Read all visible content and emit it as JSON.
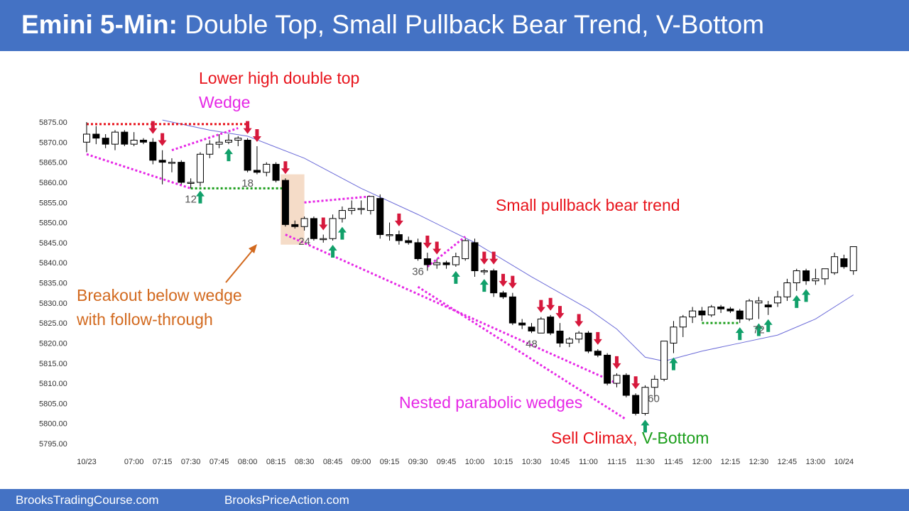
{
  "header": {
    "title_bold": "Emini 5-Min:",
    "title_rest": "Double Top, Small Pullback Bear Trend, V-Bottom",
    "background": "#4472c4"
  },
  "footer": {
    "left": "BrooksTradingCourse.com",
    "right": "BrooksPriceAction.com"
  },
  "annotations": {
    "lower_high": "Lower high double top",
    "wedge": "Wedge",
    "small_pullback": "Small pullback bear trend",
    "breakout_1": "Breakout below wedge",
    "breakout_2": "with follow-through",
    "nested": "Nested parabolic wedges",
    "sell_climax": "Sell Climax,",
    "v_bottom": "V-Bottom"
  },
  "colors": {
    "red": "#e8141c",
    "magenta": "#e627e6",
    "orange": "#d2691e",
    "green": "#1b9e1b",
    "arrow_up": "#11a06a",
    "arrow_down": "#d6183c",
    "ema": "#6b6bd8",
    "highlight": "#f5dcc8"
  },
  "chart_data": {
    "type": "candlestick",
    "title": "Emini 5-Min",
    "ylim": [
      5795,
      5875
    ],
    "y_ticks": [
      "5875.00",
      "5870.00",
      "5865.00",
      "5860.00",
      "5855.00",
      "5850.00",
      "5845.00",
      "5840.00",
      "5835.00",
      "5830.00",
      "5825.00",
      "5820.00",
      "5815.00",
      "5810.00",
      "5805.00",
      "5800.00",
      "5795.00"
    ],
    "x_ticks": [
      {
        "bar": 1,
        "label": "10/23"
      },
      {
        "bar": 6,
        "label": "07:00"
      },
      {
        "bar": 9,
        "label": "07:15"
      },
      {
        "bar": 12,
        "label": "07:30"
      },
      {
        "bar": 15,
        "label": "07:45"
      },
      {
        "bar": 18,
        "label": "08:00"
      },
      {
        "bar": 21,
        "label": "08:15"
      },
      {
        "bar": 24,
        "label": "08:30"
      },
      {
        "bar": 27,
        "label": "08:45"
      },
      {
        "bar": 30,
        "label": "09:00"
      },
      {
        "bar": 33,
        "label": "09:15"
      },
      {
        "bar": 36,
        "label": "09:30"
      },
      {
        "bar": 39,
        "label": "09:45"
      },
      {
        "bar": 42,
        "label": "10:00"
      },
      {
        "bar": 45,
        "label": "10:15"
      },
      {
        "bar": 48,
        "label": "10:30"
      },
      {
        "bar": 51,
        "label": "10:45"
      },
      {
        "bar": 54,
        "label": "11:00"
      },
      {
        "bar": 57,
        "label": "11:15"
      },
      {
        "bar": 60,
        "label": "11:30"
      },
      {
        "bar": 63,
        "label": "11:45"
      },
      {
        "bar": 66,
        "label": "12:00"
      },
      {
        "bar": 69,
        "label": "12:15"
      },
      {
        "bar": 72,
        "label": "12:30"
      },
      {
        "bar": 75,
        "label": "12:45"
      },
      {
        "bar": 78,
        "label": "13:00"
      },
      {
        "bar": 81,
        "label": "10/24"
      }
    ],
    "bar_labels": [
      {
        "bar": 12,
        "label": "12"
      },
      {
        "bar": 18,
        "label": "18"
      },
      {
        "bar": 24,
        "label": "24"
      },
      {
        "bar": 36,
        "label": "36"
      },
      {
        "bar": 48,
        "label": "48"
      },
      {
        "bar": 60,
        "label": "60"
      },
      {
        "bar": 72,
        "label": "72"
      }
    ],
    "candles": [
      {
        "bar": 1,
        "o": 5870.0,
        "h": 5875.0,
        "l": 5867.5,
        "c": 5872.0
      },
      {
        "bar": 2,
        "o": 5872.0,
        "h": 5874.0,
        "l": 5869.5,
        "c": 5871.0
      },
      {
        "bar": 3,
        "o": 5871.0,
        "h": 5872.0,
        "l": 5868.5,
        "c": 5869.5
      },
      {
        "bar": 4,
        "o": 5869.5,
        "h": 5873.0,
        "l": 5868.0,
        "c": 5872.5
      },
      {
        "bar": 5,
        "o": 5872.5,
        "h": 5873.0,
        "l": 5869.0,
        "c": 5869.5
      },
      {
        "bar": 6,
        "o": 5869.5,
        "h": 5872.5,
        "l": 5869.0,
        "c": 5870.5
      },
      {
        "bar": 7,
        "o": 5870.5,
        "h": 5871.0,
        "l": 5869.5,
        "c": 5870.0
      },
      {
        "bar": 8,
        "o": 5870.0,
        "h": 5871.0,
        "l": 5864.5,
        "c": 5865.5
      },
      {
        "bar": 9,
        "o": 5865.5,
        "h": 5868.0,
        "l": 5859.5,
        "c": 5865.0
      },
      {
        "bar": 10,
        "o": 5865.0,
        "h": 5866.0,
        "l": 5862.5,
        "c": 5865.0
      },
      {
        "bar": 11,
        "o": 5865.0,
        "h": 5865.5,
        "l": 5859.5,
        "c": 5860.0
      },
      {
        "bar": 12,
        "o": 5860.0,
        "h": 5861.0,
        "l": 5858.5,
        "c": 5860.0
      },
      {
        "bar": 13,
        "o": 5860.0,
        "h": 5867.5,
        "l": 5859.0,
        "c": 5867.0
      },
      {
        "bar": 14,
        "o": 5867.0,
        "h": 5870.5,
        "l": 5866.0,
        "c": 5869.5
      },
      {
        "bar": 15,
        "o": 5869.5,
        "h": 5872.0,
        "l": 5868.5,
        "c": 5870.0
      },
      {
        "bar": 16,
        "o": 5870.0,
        "h": 5872.0,
        "l": 5869.5,
        "c": 5870.5
      },
      {
        "bar": 17,
        "o": 5870.5,
        "h": 5871.5,
        "l": 5869.0,
        "c": 5871.0
      },
      {
        "bar": 18,
        "o": 5870.5,
        "h": 5871.0,
        "l": 5862.5,
        "c": 5863.0
      },
      {
        "bar": 19,
        "o": 5863.0,
        "h": 5869.0,
        "l": 5862.0,
        "c": 5862.5
      },
      {
        "bar": 20,
        "o": 5862.5,
        "h": 5865.0,
        "l": 5861.5,
        "c": 5864.5
      },
      {
        "bar": 21,
        "o": 5864.5,
        "h": 5865.0,
        "l": 5860.0,
        "c": 5860.5
      },
      {
        "bar": 22,
        "o": 5860.5,
        "h": 5861.0,
        "l": 5849.0,
        "c": 5849.5
      },
      {
        "bar": 23,
        "o": 5849.5,
        "h": 5850.5,
        "l": 5848.5,
        "c": 5849.0
      },
      {
        "bar": 24,
        "o": 5849.0,
        "h": 5851.5,
        "l": 5848.0,
        "c": 5851.0
      },
      {
        "bar": 25,
        "o": 5851.0,
        "h": 5851.5,
        "l": 5845.5,
        "c": 5846.0
      },
      {
        "bar": 26,
        "o": 5846.0,
        "h": 5847.0,
        "l": 5845.0,
        "c": 5846.0
      },
      {
        "bar": 27,
        "o": 5846.0,
        "h": 5852.0,
        "l": 5845.5,
        "c": 5851.0
      },
      {
        "bar": 28,
        "o": 5851.0,
        "h": 5854.0,
        "l": 5850.0,
        "c": 5853.0
      },
      {
        "bar": 29,
        "o": 5853.0,
        "h": 5855.5,
        "l": 5852.0,
        "c": 5853.5
      },
      {
        "bar": 30,
        "o": 5853.5,
        "h": 5855.5,
        "l": 5852.0,
        "c": 5853.5
      },
      {
        "bar": 31,
        "o": 5853.0,
        "h": 5856.5,
        "l": 5852.0,
        "c": 5856.5
      },
      {
        "bar": 32,
        "o": 5856.0,
        "h": 5857.0,
        "l": 5846.0,
        "c": 5847.0
      },
      {
        "bar": 33,
        "o": 5847.0,
        "h": 5850.0,
        "l": 5845.5,
        "c": 5847.0
      },
      {
        "bar": 34,
        "o": 5847.0,
        "h": 5848.0,
        "l": 5844.5,
        "c": 5845.5
      },
      {
        "bar": 35,
        "o": 5845.5,
        "h": 5846.5,
        "l": 5844.5,
        "c": 5845.0
      },
      {
        "bar": 36,
        "o": 5845.0,
        "h": 5846.0,
        "l": 5840.5,
        "c": 5841.0
      },
      {
        "bar": 37,
        "o": 5841.0,
        "h": 5842.5,
        "l": 5838.0,
        "c": 5839.5
      },
      {
        "bar": 38,
        "o": 5839.5,
        "h": 5841.0,
        "l": 5838.5,
        "c": 5840.0
      },
      {
        "bar": 39,
        "o": 5840.0,
        "h": 5840.5,
        "l": 5838.5,
        "c": 5839.5
      },
      {
        "bar": 40,
        "o": 5839.5,
        "h": 5842.5,
        "l": 5839.0,
        "c": 5841.5
      },
      {
        "bar": 41,
        "o": 5841.0,
        "h": 5846.0,
        "l": 5840.5,
        "c": 5845.5
      },
      {
        "bar": 42,
        "o": 5845.0,
        "h": 5846.0,
        "l": 5836.5,
        "c": 5838.0
      },
      {
        "bar": 43,
        "o": 5838.0,
        "h": 5838.5,
        "l": 5837.0,
        "c": 5838.0
      },
      {
        "bar": 44,
        "o": 5838.0,
        "h": 5838.5,
        "l": 5831.5,
        "c": 5832.5
      },
      {
        "bar": 45,
        "o": 5832.5,
        "h": 5833.0,
        "l": 5831.0,
        "c": 5831.5
      },
      {
        "bar": 46,
        "o": 5831.5,
        "h": 5832.5,
        "l": 5824.5,
        "c": 5825.0
      },
      {
        "bar": 47,
        "o": 5825.0,
        "h": 5826.0,
        "l": 5823.5,
        "c": 5824.5
      },
      {
        "bar": 48,
        "o": 5824.0,
        "h": 5825.0,
        "l": 5822.5,
        "c": 5823.0
      },
      {
        "bar": 49,
        "o": 5822.5,
        "h": 5826.5,
        "l": 5822.5,
        "c": 5826.0
      },
      {
        "bar": 50,
        "o": 5826.5,
        "h": 5827.0,
        "l": 5822.0,
        "c": 5822.5
      },
      {
        "bar": 51,
        "o": 5823.0,
        "h": 5825.0,
        "l": 5819.0,
        "c": 5820.0
      },
      {
        "bar": 52,
        "o": 5820.0,
        "h": 5821.5,
        "l": 5819.0,
        "c": 5821.0
      },
      {
        "bar": 53,
        "o": 5821.0,
        "h": 5823.0,
        "l": 5820.0,
        "c": 5822.5
      },
      {
        "bar": 54,
        "o": 5822.5,
        "h": 5823.0,
        "l": 5817.5,
        "c": 5818.0
      },
      {
        "bar": 55,
        "o": 5818.0,
        "h": 5818.5,
        "l": 5816.5,
        "c": 5817.0
      },
      {
        "bar": 56,
        "o": 5817.0,
        "h": 5817.5,
        "l": 5809.5,
        "c": 5810.0
      },
      {
        "bar": 57,
        "o": 5810.0,
        "h": 5812.5,
        "l": 5809.0,
        "c": 5812.0
      },
      {
        "bar": 58,
        "o": 5812.0,
        "h": 5812.5,
        "l": 5806.5,
        "c": 5807.0
      },
      {
        "bar": 59,
        "o": 5807.0,
        "h": 5807.5,
        "l": 5802.0,
        "c": 5802.5
      },
      {
        "bar": 60,
        "o": 5802.5,
        "h": 5809.5,
        "l": 5802.0,
        "c": 5809.0
      },
      {
        "bar": 61,
        "o": 5809.0,
        "h": 5812.0,
        "l": 5806.0,
        "c": 5811.0
      },
      {
        "bar": 62,
        "o": 5811.0,
        "h": 5820.5,
        "l": 5810.5,
        "c": 5820.5
      },
      {
        "bar": 63,
        "o": 5820.0,
        "h": 5825.5,
        "l": 5817.5,
        "c": 5824.0
      },
      {
        "bar": 64,
        "o": 5824.0,
        "h": 5827.0,
        "l": 5821.5,
        "c": 5826.5
      },
      {
        "bar": 65,
        "o": 5826.5,
        "h": 5829.0,
        "l": 5825.0,
        "c": 5828.0
      },
      {
        "bar": 66,
        "o": 5828.0,
        "h": 5829.0,
        "l": 5825.5,
        "c": 5827.0
      },
      {
        "bar": 67,
        "o": 5827.0,
        "h": 5829.5,
        "l": 5826.5,
        "c": 5829.0
      },
      {
        "bar": 68,
        "o": 5829.0,
        "h": 5829.5,
        "l": 5827.5,
        "c": 5828.5
      },
      {
        "bar": 69,
        "o": 5828.5,
        "h": 5829.0,
        "l": 5827.5,
        "c": 5828.0
      },
      {
        "bar": 70,
        "o": 5828.0,
        "h": 5828.5,
        "l": 5825.0,
        "c": 5826.0
      },
      {
        "bar": 71,
        "o": 5826.0,
        "h": 5831.0,
        "l": 5825.5,
        "c": 5830.5
      },
      {
        "bar": 72,
        "o": 5830.0,
        "h": 5831.5,
        "l": 5826.0,
        "c": 5830.5
      },
      {
        "bar": 73,
        "o": 5829.5,
        "h": 5830.5,
        "l": 5827.0,
        "c": 5829.0
      },
      {
        "bar": 74,
        "o": 5830.0,
        "h": 5833.0,
        "l": 5829.0,
        "c": 5831.5
      },
      {
        "bar": 75,
        "o": 5831.5,
        "h": 5836.0,
        "l": 5830.5,
        "c": 5835.0
      },
      {
        "bar": 76,
        "o": 5835.0,
        "h": 5838.5,
        "l": 5833.0,
        "c": 5838.0
      },
      {
        "bar": 77,
        "o": 5838.0,
        "h": 5838.5,
        "l": 5834.5,
        "c": 5835.5
      },
      {
        "bar": 78,
        "o": 5835.5,
        "h": 5838.5,
        "l": 5834.5,
        "c": 5836.0
      },
      {
        "bar": 79,
        "o": 5836.0,
        "h": 5838.5,
        "l": 5834.5,
        "c": 5838.5
      },
      {
        "bar": 80,
        "o": 5837.5,
        "h": 5842.5,
        "l": 5837.0,
        "c": 5841.5
      },
      {
        "bar": 81,
        "o": 5841.0,
        "h": 5842.0,
        "l": 5838.5,
        "c": 5839.0
      },
      {
        "bar": 82,
        "o": 5838.0,
        "h": 5844.0,
        "l": 5837.0,
        "c": 5844.0
      }
    ],
    "ema": [
      {
        "bar": 9,
        "y": 5875.5
      },
      {
        "bar": 14,
        "y": 5873.0
      },
      {
        "bar": 18,
        "y": 5871.5
      },
      {
        "bar": 24,
        "y": 5866.0
      },
      {
        "bar": 30,
        "y": 5858.5
      },
      {
        "bar": 36,
        "y": 5852.0
      },
      {
        "bar": 42,
        "y": 5845.0
      },
      {
        "bar": 48,
        "y": 5836.5
      },
      {
        "bar": 54,
        "y": 5828.5
      },
      {
        "bar": 57,
        "y": 5823.5
      },
      {
        "bar": 60,
        "y": 5816.5
      },
      {
        "bar": 62,
        "y": 5815.5
      },
      {
        "bar": 66,
        "y": 5818.0
      },
      {
        "bar": 70,
        "y": 5820.0
      },
      {
        "bar": 74,
        "y": 5822.0
      },
      {
        "bar": 78,
        "y": 5826.0
      },
      {
        "bar": 82,
        "y": 5832.0
      }
    ],
    "down_arrows": [
      8,
      9,
      18,
      19,
      22,
      26,
      34,
      37,
      38,
      43,
      44,
      45,
      46,
      49,
      50,
      51,
      53,
      55,
      57,
      59
    ],
    "up_arrows": [
      13,
      16,
      27,
      28,
      40,
      43,
      60,
      63,
      70,
      72,
      73,
      76,
      77
    ],
    "lines": {
      "double_top": {
        "x1": 1,
        "x2": 18,
        "y": 5874.5
      },
      "breakout_support": {
        "x1": 12,
        "x2": 22,
        "y": 5858.5
      },
      "support_72": {
        "x1": 66,
        "x2": 70,
        "y": 5825.0
      },
      "wedge_lower": [
        {
          "bar": 1,
          "y": 5867.0
        },
        {
          "bar": 12,
          "y": 5858.5
        }
      ],
      "wedge_upper": [
        {
          "bar": 10,
          "y": 5868.0
        },
        {
          "bar": 17,
          "y": 5873.5
        }
      ],
      "lower_trend": [
        {
          "bar": 22,
          "y": 5847.0
        },
        {
          "bar": 57,
          "y": 5810.0
        }
      ],
      "outer_wedge": [
        {
          "bar": 36,
          "y": 5834.0
        },
        {
          "bar": 58,
          "y": 5801.0
        }
      ],
      "inner_wedge_top": [
        {
          "bar": 37,
          "y": 5839.0
        },
        {
          "bar": 41,
          "y": 5846.5
        }
      ],
      "pullback_top": [
        {
          "bar": 24,
          "y": 5855.0
        },
        {
          "bar": 31,
          "y": 5856.5
        }
      ],
      "highlight_box": {
        "x1": 21.5,
        "x2": 24.0,
        "y1": 5844.5,
        "y2": 5862.0
      }
    }
  }
}
